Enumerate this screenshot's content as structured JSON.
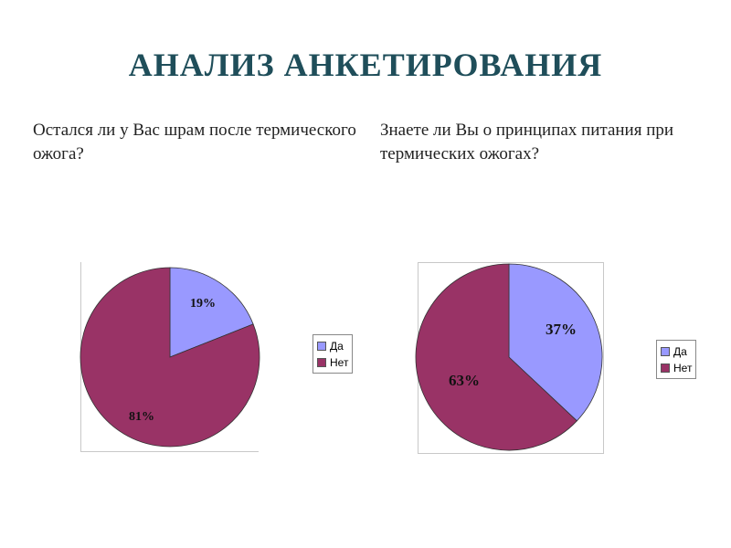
{
  "title": "АНАЛИЗ АНКЕТИРОВАНИЯ",
  "questions": [
    "Остался ли у Вас шрам после термического ожога?",
    "Знаете ли Вы о принципах питания при термических ожогах?"
  ],
  "colors": {
    "yes": "#9999ff",
    "no": "#993366"
  },
  "chart_data": [
    {
      "type": "pie",
      "title": "Остался ли у Вас шрам после термического ожога?",
      "categories": [
        "Да",
        "Нет"
      ],
      "values": [
        19,
        81
      ],
      "labels": [
        "19%",
        "81%"
      ],
      "legend": "right"
    },
    {
      "type": "pie",
      "title": "Знаете ли Вы о принципах питания при термических ожогах?",
      "categories": [
        "Да",
        "Нет"
      ],
      "values": [
        37,
        63
      ],
      "labels": [
        "37%",
        "63%"
      ],
      "legend": "right"
    }
  ]
}
